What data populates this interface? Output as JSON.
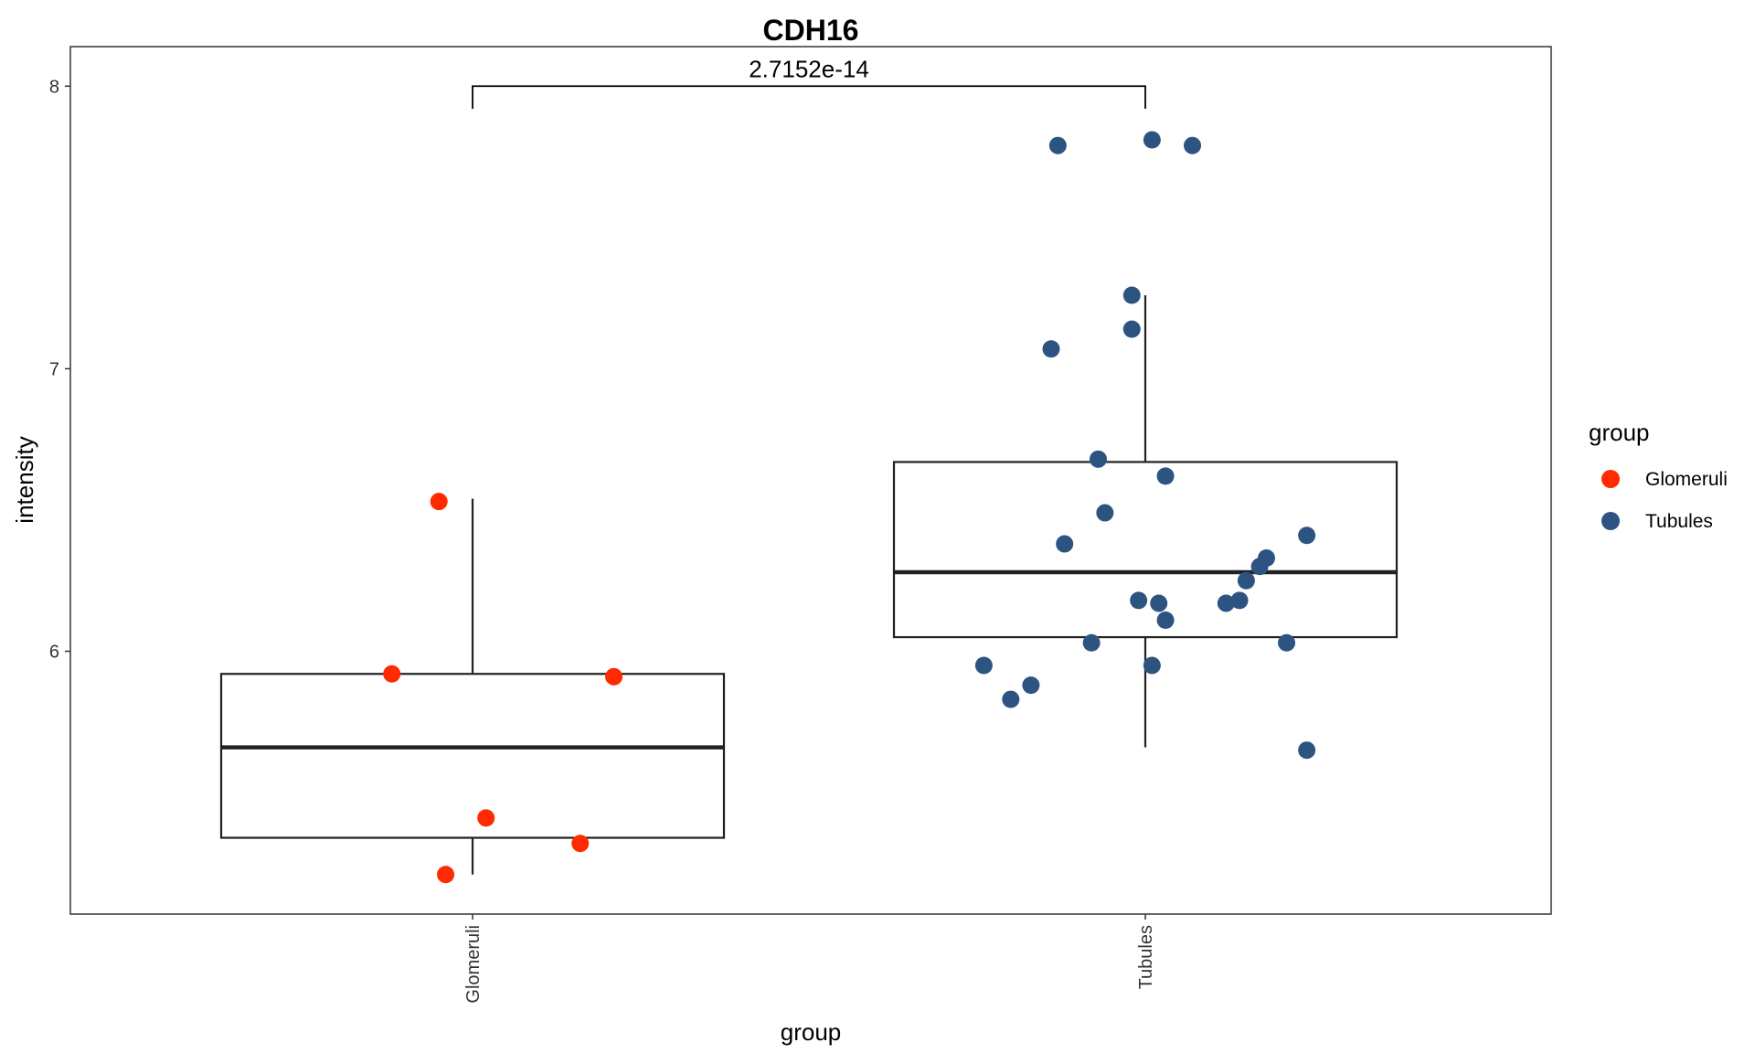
{
  "chart_data": {
    "type": "box",
    "title": "CDH16",
    "xlabel": "group",
    "ylabel": "intensity",
    "categories": [
      "Glomeruli",
      "Tubules"
    ],
    "y_ticks": [
      "6",
      "7",
      "8"
    ],
    "ylim": [
      5.07,
      8.14
    ],
    "grid": false,
    "comparison": {
      "groups": [
        "Glomeruli",
        "Tubules"
      ],
      "label": "2.7152e-14"
    },
    "legend": {
      "title": "group",
      "position": "right",
      "entries": [
        {
          "name": "Glomeruli",
          "color": "#ff2a00"
        },
        {
          "name": "Tubules",
          "color": "#2d5480"
        }
      ]
    },
    "boxes": [
      {
        "group": "Glomeruli",
        "q1": 5.34,
        "median": 5.66,
        "q3": 5.92,
        "whisker_low": 5.21,
        "whisker_high": 6.54
      },
      {
        "group": "Tubules",
        "q1": 6.05,
        "median": 6.28,
        "q3": 6.67,
        "whisker_low": 5.66,
        "whisker_high": 7.26
      }
    ],
    "series": [
      {
        "name": "Glomeruli",
        "color": "#ff2a00",
        "points": [
          {
            "x": "Glomeruli",
            "jitter": -0.05,
            "y": 6.53
          },
          {
            "x": "Glomeruli",
            "jitter": -0.12,
            "y": 5.92
          },
          {
            "x": "Glomeruli",
            "jitter": 0.21,
            "y": 5.91
          },
          {
            "x": "Glomeruli",
            "jitter": 0.02,
            "y": 5.41
          },
          {
            "x": "Glomeruli",
            "jitter": 0.16,
            "y": 5.32
          },
          {
            "x": "Glomeruli",
            "jitter": -0.04,
            "y": 5.21
          }
        ]
      },
      {
        "name": "Tubules",
        "color": "#2d5480",
        "points": [
          {
            "x": "Tubules",
            "jitter": -0.13,
            "y": 7.79
          },
          {
            "x": "Tubules",
            "jitter": 0.01,
            "y": 7.81
          },
          {
            "x": "Tubules",
            "jitter": 0.07,
            "y": 7.79
          },
          {
            "x": "Tubules",
            "jitter": -0.02,
            "y": 7.26
          },
          {
            "x": "Tubules",
            "jitter": -0.02,
            "y": 7.14
          },
          {
            "x": "Tubules",
            "jitter": -0.14,
            "y": 7.07
          },
          {
            "x": "Tubules",
            "jitter": -0.07,
            "y": 6.68
          },
          {
            "x": "Tubules",
            "jitter": 0.03,
            "y": 6.62
          },
          {
            "x": "Tubules",
            "jitter": -0.06,
            "y": 6.49
          },
          {
            "x": "Tubules",
            "jitter": 0.24,
            "y": 6.41
          },
          {
            "x": "Tubules",
            "jitter": -0.12,
            "y": 6.38
          },
          {
            "x": "Tubules",
            "jitter": 0.18,
            "y": 6.33
          },
          {
            "x": "Tubules",
            "jitter": 0.17,
            "y": 6.3
          },
          {
            "x": "Tubules",
            "jitter": 0.15,
            "y": 6.25
          },
          {
            "x": "Tubules",
            "jitter": -0.01,
            "y": 6.18
          },
          {
            "x": "Tubules",
            "jitter": 0.02,
            "y": 6.17
          },
          {
            "x": "Tubules",
            "jitter": 0.14,
            "y": 6.18
          },
          {
            "x": "Tubules",
            "jitter": 0.12,
            "y": 6.17
          },
          {
            "x": "Tubules",
            "jitter": 0.03,
            "y": 6.11
          },
          {
            "x": "Tubules",
            "jitter": -0.08,
            "y": 6.03
          },
          {
            "x": "Tubules",
            "jitter": 0.21,
            "y": 6.03
          },
          {
            "x": "Tubules",
            "jitter": -0.24,
            "y": 5.95
          },
          {
            "x": "Tubules",
            "jitter": 0.01,
            "y": 5.95
          },
          {
            "x": "Tubules",
            "jitter": -0.17,
            "y": 5.88
          },
          {
            "x": "Tubules",
            "jitter": -0.2,
            "y": 5.83
          },
          {
            "x": "Tubules",
            "jitter": 0.24,
            "y": 5.65
          }
        ]
      }
    ]
  }
}
